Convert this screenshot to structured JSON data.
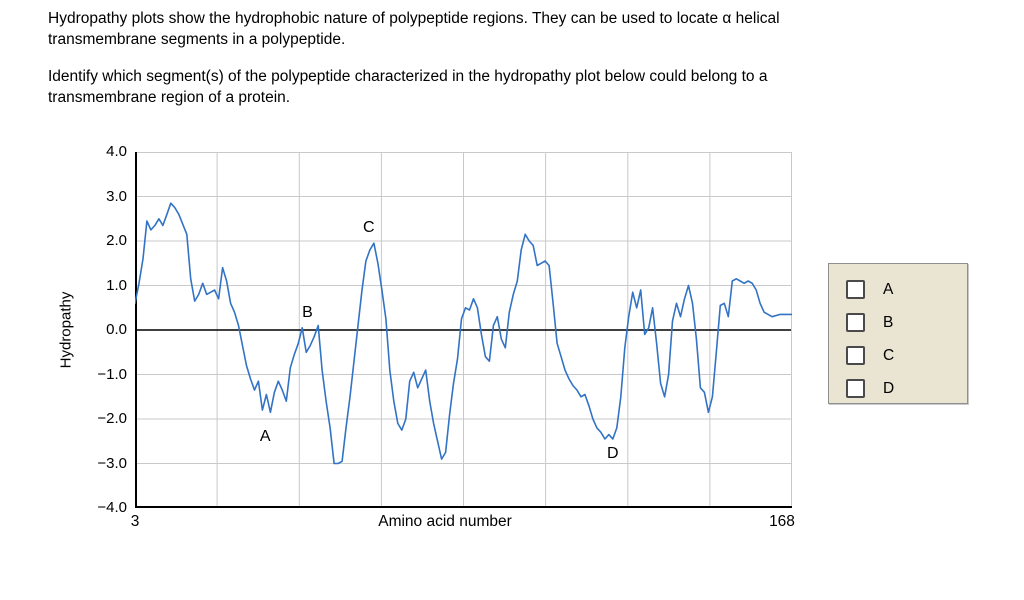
{
  "question": {
    "intro_line1": "Hydropathy plots show the hydrophobic nature of polypeptide regions. They can be used to locate α helical",
    "intro_line2": "transmembrane segments in a polypeptide.",
    "prompt_line1": "Identify which segment(s) of the polypeptide characterized in the hydropathy plot below could belong to a",
    "prompt_line2": "transmembrane region of a protein."
  },
  "answers": {
    "options": [
      "A",
      "B",
      "C",
      "D"
    ]
  },
  "chart_data": {
    "type": "line",
    "title": "",
    "xlabel": "Amino acid number",
    "ylabel": "Hydropathy",
    "xlim": [
      3,
      168
    ],
    "ylim": [
      -4,
      4
    ],
    "x_tick_labels": [
      "3",
      "168"
    ],
    "y_ticks": [
      {
        "value": 4,
        "label": "4.0"
      },
      {
        "value": 3,
        "label": "3.0"
      },
      {
        "value": 2,
        "label": "2.0"
      },
      {
        "value": 1,
        "label": "1.0"
      },
      {
        "value": 0,
        "label": "0.0"
      },
      {
        "value": -1,
        "label": "−1.0"
      },
      {
        "value": -2,
        "label": "−2.0"
      },
      {
        "value": -3,
        "label": "−3.0"
      },
      {
        "value": -4,
        "label": "−4.0"
      }
    ],
    "grid": true,
    "zero_line": true,
    "legend_position": "none",
    "line_color": "#3273c5",
    "grid_color": "#c9c9c9",
    "annotations": [
      {
        "label": "A",
        "x": 35.7,
        "y": -2.4
      },
      {
        "label": "B",
        "x": 46.3,
        "y": 0.38
      },
      {
        "label": "C",
        "x": 61.7,
        "y": 2.3
      },
      {
        "label": "D",
        "x": 123.0,
        "y": -2.78
      }
    ],
    "series": [
      {
        "name": "hydropathy",
        "points": [
          [
            3,
            0.6
          ],
          [
            4,
            1.05
          ],
          [
            5,
            1.6
          ],
          [
            6,
            2.45
          ],
          [
            7,
            2.25
          ],
          [
            8,
            2.35
          ],
          [
            9,
            2.5
          ],
          [
            10,
            2.35
          ],
          [
            11,
            2.6
          ],
          [
            12,
            2.85
          ],
          [
            13,
            2.75
          ],
          [
            14,
            2.6
          ],
          [
            16,
            2.15
          ],
          [
            17,
            1.15
          ],
          [
            18,
            0.65
          ],
          [
            19,
            0.8
          ],
          [
            20,
            1.05
          ],
          [
            21,
            0.8
          ],
          [
            22,
            0.85
          ],
          [
            23,
            0.9
          ],
          [
            24,
            0.7
          ],
          [
            25,
            1.4
          ],
          [
            26,
            1.1
          ],
          [
            27,
            0.6
          ],
          [
            28,
            0.4
          ],
          [
            29,
            0.1
          ],
          [
            30,
            -0.35
          ],
          [
            31,
            -0.8
          ],
          [
            32,
            -1.1
          ],
          [
            33,
            -1.35
          ],
          [
            34,
            -1.15
          ],
          [
            35,
            -1.8
          ],
          [
            36,
            -1.45
          ],
          [
            37,
            -1.85
          ],
          [
            38,
            -1.4
          ],
          [
            39,
            -1.15
          ],
          [
            40,
            -1.35
          ],
          [
            41,
            -1.6
          ],
          [
            42,
            -0.85
          ],
          [
            43,
            -0.55
          ],
          [
            44,
            -0.3
          ],
          [
            45,
            0.05
          ],
          [
            46,
            -0.5
          ],
          [
            47,
            -0.35
          ],
          [
            48,
            -0.15
          ],
          [
            49,
            0.1
          ],
          [
            50,
            -0.9
          ],
          [
            51,
            -1.6
          ],
          [
            52,
            -2.2
          ],
          [
            53,
            -3.0
          ],
          [
            54,
            -3.0
          ],
          [
            55,
            -2.95
          ],
          [
            56,
            -2.2
          ],
          [
            57,
            -1.5
          ],
          [
            58,
            -0.7
          ],
          [
            59,
            0.1
          ],
          [
            60,
            0.9
          ],
          [
            61,
            1.55
          ],
          [
            62,
            1.8
          ],
          [
            63,
            1.95
          ],
          [
            64,
            1.5
          ],
          [
            65,
            0.9
          ],
          [
            66,
            0.25
          ],
          [
            67,
            -0.9
          ],
          [
            68,
            -1.6
          ],
          [
            69,
            -2.1
          ],
          [
            70,
            -2.25
          ],
          [
            71,
            -2.0
          ],
          [
            72,
            -1.15
          ],
          [
            73,
            -0.95
          ],
          [
            74,
            -1.3
          ],
          [
            75,
            -1.1
          ],
          [
            76,
            -0.9
          ],
          [
            77,
            -1.6
          ],
          [
            78,
            -2.1
          ],
          [
            79,
            -2.5
          ],
          [
            80,
            -2.9
          ],
          [
            81,
            -2.75
          ],
          [
            82,
            -1.9
          ],
          [
            83,
            -1.2
          ],
          [
            84,
            -0.65
          ],
          [
            85,
            0.25
          ],
          [
            86,
            0.5
          ],
          [
            87,
            0.45
          ],
          [
            88,
            0.7
          ],
          [
            89,
            0.5
          ],
          [
            90,
            -0.1
          ],
          [
            91,
            -0.6
          ],
          [
            92,
            -0.7
          ],
          [
            93,
            0.1
          ],
          [
            94,
            0.3
          ],
          [
            95,
            -0.2
          ],
          [
            96,
            -0.4
          ],
          [
            97,
            0.4
          ],
          [
            98,
            0.8
          ],
          [
            99,
            1.1
          ],
          [
            100,
            1.8
          ],
          [
            101,
            2.15
          ],
          [
            102,
            2.0
          ],
          [
            103,
            1.9
          ],
          [
            104,
            1.45
          ],
          [
            105,
            1.5
          ],
          [
            106,
            1.55
          ],
          [
            107,
            1.45
          ],
          [
            108,
            0.6
          ],
          [
            109,
            -0.3
          ],
          [
            110,
            -0.6
          ],
          [
            111,
            -0.9
          ],
          [
            112,
            -1.1
          ],
          [
            113,
            -1.25
          ],
          [
            114,
            -1.35
          ],
          [
            115,
            -1.5
          ],
          [
            116,
            -1.45
          ],
          [
            117,
            -1.7
          ],
          [
            118,
            -2.0
          ],
          [
            119,
            -2.2
          ],
          [
            120,
            -2.3
          ],
          [
            121,
            -2.45
          ],
          [
            122,
            -2.35
          ],
          [
            123,
            -2.45
          ],
          [
            124,
            -2.2
          ],
          [
            125,
            -1.5
          ],
          [
            126,
            -0.4
          ],
          [
            127,
            0.3
          ],
          [
            128,
            0.85
          ],
          [
            129,
            0.5
          ],
          [
            130,
            0.9
          ],
          [
            131,
            -0.1
          ],
          [
            132,
            0.05
          ],
          [
            133,
            0.5
          ],
          [
            134,
            -0.3
          ],
          [
            135,
            -1.2
          ],
          [
            136,
            -1.5
          ],
          [
            137,
            -1.0
          ],
          [
            138,
            0.2
          ],
          [
            139,
            0.6
          ],
          [
            140,
            0.3
          ],
          [
            141,
            0.7
          ],
          [
            142,
            1.0
          ],
          [
            143,
            0.6
          ],
          [
            144,
            -0.2
          ],
          [
            145,
            -1.3
          ],
          [
            146,
            -1.4
          ],
          [
            147,
            -1.85
          ],
          [
            148,
            -1.5
          ],
          [
            149,
            -0.5
          ],
          [
            150,
            0.55
          ],
          [
            151,
            0.6
          ],
          [
            152,
            0.3
          ],
          [
            153,
            1.1
          ],
          [
            154,
            1.15
          ],
          [
            155,
            1.1
          ],
          [
            156,
            1.05
          ],
          [
            157,
            1.1
          ],
          [
            158,
            1.05
          ],
          [
            159,
            0.9
          ],
          [
            160,
            0.6
          ],
          [
            161,
            0.4
          ],
          [
            163,
            0.3
          ],
          [
            165,
            0.35
          ],
          [
            168,
            0.35
          ]
        ]
      }
    ]
  }
}
